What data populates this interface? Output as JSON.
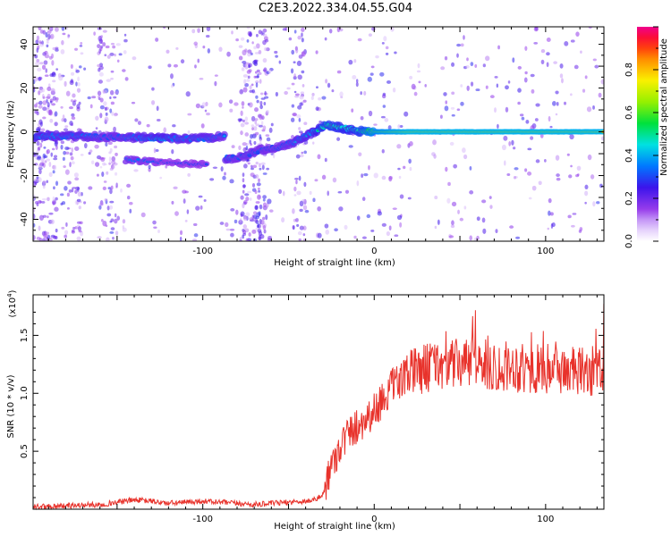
{
  "title": "C2E3.2022.334.04.55.G04",
  "chart_data": [
    {
      "type": "heatmap",
      "xlabel": "Height of straight line (km)",
      "ylabel": "Frequency (Hz)",
      "xlim": [
        -199,
        134
      ],
      "ylim": [
        -50,
        48
      ],
      "xticks": [
        -100,
        0,
        100
      ],
      "xtick_labels": [
        "-100",
        "0",
        "100"
      ],
      "yticks": [
        40,
        20,
        0,
        -20,
        -40
      ],
      "ytick_labels": [
        "40",
        "20",
        "0",
        "-20",
        "-40"
      ],
      "colorbar": {
        "label": "Normalized spectral amplitude",
        "range": [
          0,
          1
        ],
        "ticks": [
          0.0,
          0.2,
          0.4,
          0.6,
          0.8
        ],
        "tick_labels": [
          "0.0",
          "0.2",
          "0.4",
          "0.6",
          "0.8"
        ]
      },
      "ridge": [
        {
          "x": -198,
          "f": -2,
          "a": 0.5
        },
        {
          "x": -185,
          "f": -2,
          "a": 0.45
        },
        {
          "x": -170,
          "f": -2,
          "a": 0.45
        },
        {
          "x": -155,
          "f": -2.5,
          "a": 0.4
        },
        {
          "x": -140,
          "f": -2.5,
          "a": 0.45
        },
        {
          "x": -125,
          "f": -3,
          "a": 0.5
        },
        {
          "x": -110,
          "f": -3,
          "a": 0.45
        },
        {
          "x": -95,
          "f": -3,
          "a": 0.45
        },
        {
          "x": -87,
          "f": -1.5,
          "a": 0.4
        },
        {
          "x": -88,
          "f": -12,
          "a": 0.45
        },
        {
          "x": -80,
          "f": -12,
          "a": 0.4
        },
        {
          "x": -65,
          "f": -8,
          "a": 0.4
        },
        {
          "x": -55,
          "f": -7,
          "a": 0.4
        },
        {
          "x": -45,
          "f": -4,
          "a": 0.45
        },
        {
          "x": -35,
          "f": 0,
          "a": 0.5
        },
        {
          "x": -28,
          "f": 3,
          "a": 0.65
        },
        {
          "x": -20,
          "f": 2,
          "a": 0.6
        },
        {
          "x": -10,
          "f": 0.5,
          "a": 0.6
        },
        {
          "x": 0,
          "f": 0,
          "a": 0.8
        },
        {
          "x": 20,
          "f": 0,
          "a": 0.9
        },
        {
          "x": 60,
          "f": 0,
          "a": 0.9
        },
        {
          "x": 100,
          "f": 0,
          "a": 0.9
        },
        {
          "x": 134,
          "f": 0,
          "a": 0.9
        }
      ],
      "secondary_ridge": [
        {
          "x": -140,
          "f": -13,
          "a": 0.35
        },
        {
          "x": -120,
          "f": -14,
          "a": 0.3
        },
        {
          "x": -100,
          "f": -15,
          "a": 0.3
        }
      ]
    },
    {
      "type": "line",
      "xlabel": "Height of straight line (km)",
      "ylabel": "SNR (10 * v/v)",
      "yscale_label": "(x10",
      "yscale_exp": "4",
      "xlim": [
        -199,
        134
      ],
      "ylim": [
        0,
        1.85
      ],
      "xticks": [
        -100,
        0,
        100
      ],
      "xtick_labels": [
        "-100",
        "0",
        "100"
      ],
      "yticks": [
        0.5,
        1.0,
        1.5
      ],
      "ytick_labels": [
        "0.5",
        "1.0",
        "1.5"
      ],
      "line_color": "#e8322b",
      "series": [
        {
          "x": [
            -199,
            -180,
            -160,
            -150,
            -140,
            -130,
            -120,
            -110,
            -100,
            -90,
            -80,
            -70,
            -60,
            -50,
            -40,
            -35,
            -30,
            -27,
            -24,
            -20,
            -15,
            -10,
            -5,
            0,
            5,
            10,
            15,
            20,
            25,
            30,
            40,
            50,
            60,
            70,
            80,
            90,
            100,
            110,
            120,
            134
          ],
          "values": [
            0.02,
            0.03,
            0.04,
            0.06,
            0.08,
            0.07,
            0.05,
            0.06,
            0.07,
            0.06,
            0.05,
            0.04,
            0.05,
            0.06,
            0.07,
            0.08,
            0.12,
            0.3,
            0.4,
            0.55,
            0.65,
            0.72,
            0.78,
            0.85,
            0.95,
            1.05,
            1.1,
            1.15,
            1.2,
            1.22,
            1.25,
            1.25,
            1.27,
            1.22,
            1.24,
            1.2,
            1.22,
            1.2,
            1.18,
            1.2
          ]
        }
      ]
    }
  ]
}
